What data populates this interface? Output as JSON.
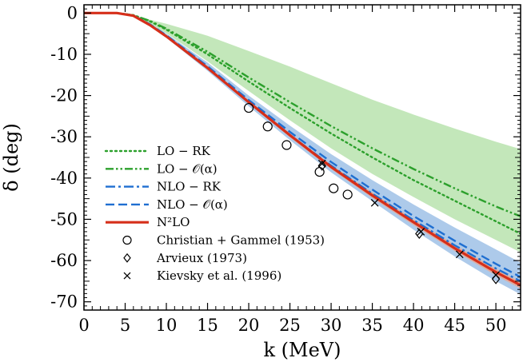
{
  "chart_data": {
    "type": "line",
    "xlabel": "k (MeV)",
    "ylabel": "δ (deg)",
    "xlim": [
      0,
      53
    ],
    "ylim": [
      -72,
      2
    ],
    "x_ticks": [
      0,
      5,
      10,
      15,
      20,
      25,
      30,
      35,
      40,
      45,
      50
    ],
    "y_ticks": [
      0,
      -10,
      -20,
      -30,
      -40,
      -50,
      -60,
      -70
    ],
    "x_tick_labels": [
      "0",
      "5",
      "10",
      "15",
      "20",
      "25",
      "30",
      "35",
      "40",
      "45",
      "50"
    ],
    "y_tick_labels": [
      "0",
      "-10",
      "-20",
      "-30",
      "-40",
      "-50",
      "-60",
      "-70"
    ],
    "bands": [
      {
        "name": "LO band",
        "color": "#b8e3ae",
        "x": [
          0,
          4,
          6,
          8,
          10,
          15,
          20,
          25,
          30,
          35,
          40,
          45,
          50,
          53
        ],
        "upper": [
          0,
          0,
          -0.6,
          -1.6,
          -2.6,
          -5.5,
          -9.2,
          -13.0,
          -17.0,
          -21.0,
          -24.6,
          -28.0,
          -31.2,
          -33.0
        ],
        "lower": [
          0,
          0,
          -0.6,
          -2.6,
          -4.9,
          -11.7,
          -18.9,
          -26.0,
          -32.8,
          -39.0,
          -44.6,
          -50.0,
          -55.0,
          -58.0
        ]
      },
      {
        "name": "NLO band",
        "color": "#9fc1e6",
        "x": [
          0,
          4,
          6,
          8,
          10,
          15,
          20,
          25,
          30,
          35,
          40,
          45,
          50,
          53
        ],
        "upper": [
          0,
          0,
          -0.5,
          -2.5,
          -5.0,
          -12.0,
          -20.0,
          -27.3,
          -34.2,
          -40.5,
          -46.4,
          -52.0,
          -57.3,
          -60.5
        ],
        "lower": [
          0,
          0,
          -0.7,
          -3.1,
          -6.0,
          -14.0,
          -22.6,
          -30.8,
          -38.6,
          -45.6,
          -52.5,
          -59.0,
          -65.0,
          -68.2
        ]
      },
      {
        "name": "N2LO band",
        "color": "#e7a690",
        "x": [
          0,
          4,
          6,
          8,
          10,
          15,
          20,
          25,
          30,
          35,
          40,
          45,
          50,
          53
        ],
        "upper": [
          0,
          0,
          -0.6,
          -2.8,
          -5.5,
          -13.0,
          -21.3,
          -29.2,
          -36.8,
          -43.5,
          -50.0,
          -56.2,
          -62.0,
          -65.2
        ],
        "lower": [
          0,
          0,
          -0.7,
          -3.0,
          -5.8,
          -13.6,
          -22.0,
          -30.1,
          -37.8,
          -44.8,
          -51.4,
          -57.7,
          -63.6,
          -66.8
        ]
      }
    ],
    "series": [
      {
        "name": "LO−RK",
        "color": "#2ca02c",
        "dash": "dotted",
        "x": [
          0,
          4,
          6,
          8,
          10,
          15,
          20,
          25,
          30,
          35,
          40,
          45,
          50,
          53
        ],
        "y": [
          0,
          0,
          -0.5,
          -2.0,
          -4.0,
          -10.0,
          -16.6,
          -23.0,
          -29.2,
          -35.0,
          -40.5,
          -45.5,
          -50.5,
          -53.5
        ]
      },
      {
        "name": "LO−𝒪(α)",
        "color": "#2ca02c",
        "dash": "dashdotdot",
        "x": [
          0,
          4,
          6,
          8,
          10,
          15,
          20,
          25,
          30,
          35,
          40,
          45,
          50,
          53
        ],
        "y": [
          0,
          0,
          -0.5,
          -1.9,
          -3.8,
          -9.4,
          -15.6,
          -21.6,
          -27.4,
          -32.8,
          -37.8,
          -42.5,
          -46.9,
          -49.3
        ]
      },
      {
        "name": "NLO−RK",
        "color": "#1f6fd1",
        "dash": "dashdot",
        "x": [
          0,
          4,
          6,
          8,
          10,
          15,
          20,
          25,
          30,
          35,
          40,
          45,
          50,
          53
        ],
        "y": [
          0,
          0,
          -0.6,
          -2.8,
          -5.6,
          -13.3,
          -21.7,
          -29.6,
          -37.0,
          -43.8,
          -50.2,
          -56.3,
          -61.9,
          -65.0
        ]
      },
      {
        "name": "NLO−𝒪(α)",
        "color": "#1f6fd1",
        "dash": "dashed",
        "x": [
          0,
          4,
          6,
          8,
          10,
          15,
          20,
          25,
          30,
          35,
          40,
          45,
          50,
          53
        ],
        "y": [
          0,
          0,
          -0.6,
          -2.7,
          -5.4,
          -12.9,
          -21.1,
          -28.8,
          -36.1,
          -42.8,
          -49.2,
          -55.2,
          -60.8,
          -64.0
        ]
      },
      {
        "name": "N²LO",
        "color": "#d62f1a",
        "dash": "solid",
        "x": [
          0,
          4,
          6,
          8,
          10,
          15,
          20,
          25,
          30,
          35,
          40,
          45,
          50,
          53
        ],
        "y": [
          0,
          0,
          -0.65,
          -2.9,
          -5.65,
          -13.3,
          -21.6,
          -29.6,
          -37.3,
          -44.2,
          -50.7,
          -57.0,
          -62.8,
          -66.0
        ]
      }
    ],
    "data_sets": [
      {
        "name": "Christian + Gammel (1953)",
        "marker": "circle",
        "points": [
          [
            20.0,
            -23.0
          ],
          [
            22.3,
            -27.5
          ],
          [
            24.6,
            -32.0
          ],
          [
            28.6,
            -38.5
          ],
          [
            30.3,
            -42.5
          ],
          [
            32.0,
            -44.0
          ]
        ]
      },
      {
        "name": "Arvieux (1973)",
        "marker": "diamond",
        "points": [
          [
            28.9,
            -37.0
          ],
          [
            40.7,
            -53.5
          ],
          [
            50.0,
            -64.5
          ]
        ]
      },
      {
        "name": "Kievsky et al. (1996)",
        "marker": "cross",
        "points": [
          [
            28.9,
            -36.5
          ],
          [
            35.3,
            -46.0
          ],
          [
            40.9,
            -53.0
          ],
          [
            45.6,
            -58.5
          ],
          [
            50.0,
            -63.5
          ]
        ]
      }
    ],
    "legend": {
      "placement": "lower-left",
      "entries": [
        {
          "label": "LO − RK",
          "kind": "line",
          "color": "#2ca02c",
          "dash": "dotted"
        },
        {
          "label": "LO − 𝒪(α)",
          "kind": "line",
          "color": "#2ca02c",
          "dash": "dashdotdot"
        },
        {
          "label": "NLO − RK",
          "kind": "line",
          "color": "#1f6fd1",
          "dash": "dashdot"
        },
        {
          "label": "NLO − 𝒪(α)",
          "kind": "line",
          "color": "#1f6fd1",
          "dash": "dashed"
        },
        {
          "label": "N²LO",
          "kind": "line",
          "color": "#d62f1a",
          "dash": "solid"
        },
        {
          "label": "Christian + Gammel (1953)",
          "kind": "marker",
          "marker": "circle"
        },
        {
          "label": "Arvieux (1973)",
          "kind": "marker",
          "marker": "diamond"
        },
        {
          "label": "Kievsky et al. (1996)",
          "kind": "marker",
          "marker": "cross"
        }
      ]
    },
    "grid": false
  }
}
